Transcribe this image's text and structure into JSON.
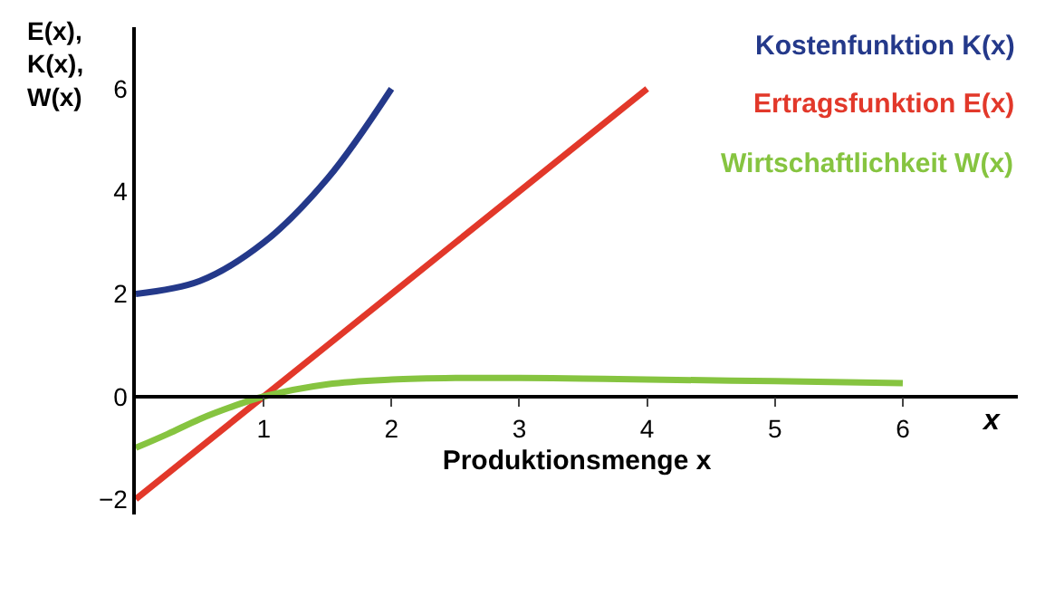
{
  "chart_data": {
    "type": "line",
    "xlabel": "Produktionsmenge x",
    "ylabel": "E(x),\nK(x),\nW(x)",
    "annotations": [
      "x"
    ],
    "xlim": [
      0,
      6.9
    ],
    "ylim": [
      -2.3,
      7.2
    ],
    "xticks": [
      1,
      2,
      3,
      4,
      5,
      6
    ],
    "yticks": [
      -2,
      0,
      2,
      4,
      6
    ],
    "legend": false,
    "marker": "none",
    "line_style": "solid",
    "series": [
      {
        "name": "Kostenfunktion K(x)",
        "color": "#24398a",
        "x": [
          0,
          0.5,
          1,
          1.5,
          2
        ],
        "values": [
          2,
          2.25,
          3,
          4.25,
          6
        ]
      },
      {
        "name": "Ertragsfunktion E(x)",
        "color": "#e2382a",
        "x": [
          0,
          1,
          2,
          3,
          4
        ],
        "values": [
          -2,
          0,
          2,
          4,
          6
        ]
      },
      {
        "name": "Wirtschaftlichkeit W(x)",
        "color": "#86c440",
        "x": [
          0,
          0.25,
          0.5,
          0.75,
          1,
          1.5,
          2,
          2.5,
          3,
          3.5,
          4,
          5,
          6
        ],
        "values": [
          -1,
          -0.73,
          -0.44,
          -0.2,
          0,
          0.24,
          0.33,
          0.36,
          0.36,
          0.35,
          0.33,
          0.3,
          0.26
        ]
      }
    ]
  }
}
